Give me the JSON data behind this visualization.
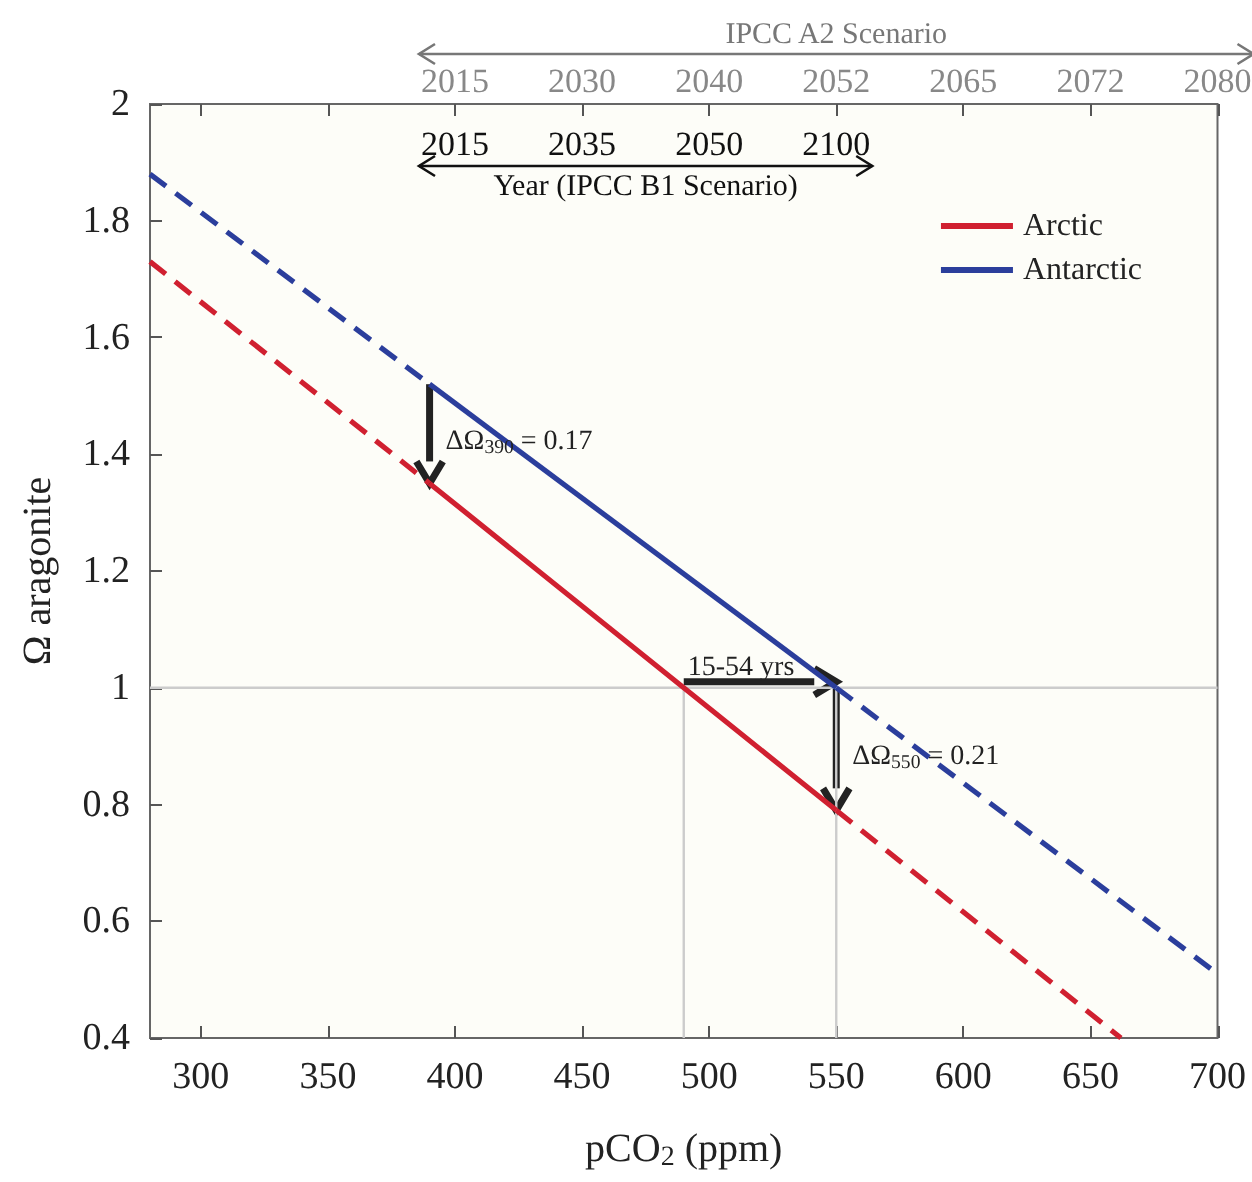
{
  "chart_data": {
    "type": "line",
    "xlabel": "pCO$_{2}$ (ppm)",
    "ylabel": "Ω aragonite",
    "x2label": "IPCC A2 Scenario",
    "xlim": [
      280,
      700
    ],
    "xticks": [
      300,
      350,
      400,
      450,
      500,
      550,
      600,
      650,
      700
    ],
    "ylim": [
      0.4,
      2
    ],
    "yticks": [
      0.4,
      0.6,
      0.8,
      1,
      1.2,
      1.4,
      1.6,
      1.8,
      2
    ],
    "marker": "none",
    "legend": "top right",
    "series": [
      {
        "name": "Arctic",
        "color": "#d02030",
        "line_style": "solid",
        "x": [
          390,
          490,
          550
        ],
        "values": [
          1.35,
          1.0,
          0.79
        ]
      },
      {
        "name": "Antarctic",
        "color": "#2b3e9c",
        "line_style": "solid",
        "x": [
          390,
          550
        ],
        "values": [
          1.52,
          1.0
        ]
      },
      {
        "color": "#d02030",
        "line_style": "dashed",
        "x": [
          280,
          390
        ],
        "values": [
          1.73,
          1.35
        ]
      },
      {
        "color": "#d02030",
        "line_style": "dashed",
        "x": [
          550,
          662
        ],
        "values": [
          0.79,
          0.4
        ]
      },
      {
        "color": "#2b3e9c",
        "line_style": "dashed",
        "x": [
          280,
          390
        ],
        "values": [
          1.88,
          1.52
        ]
      },
      {
        "color": "#2b3e9c",
        "line_style": "dashed",
        "x": [
          550,
          700
        ],
        "values": [
          1.0,
          0.51
        ]
      }
    ],
    "ref_lines": [
      {
        "axis": "y",
        "value": 1,
        "color": "#cccccc"
      },
      {
        "axis": "x",
        "value": 490,
        "color": "#cccccc"
      },
      {
        "axis": "x",
        "value": 550,
        "color": "#cccccc"
      }
    ],
    "annotations": [
      {
        "text": "ΔΩ$_{390}$ = 0.17",
        "x": 390,
        "y": 1.52
      },
      {
        "text": "15-54 yrs",
        "x": 490,
        "y": 1
      },
      {
        "text": "ΔΩ$_{550}$ = 0.21",
        "x": 550,
        "y": 1.0
      },
      "2015",
      "2030",
      "2040",
      "2052",
      "2065",
      "2072",
      "2080",
      "2015",
      "2035",
      "2050",
      "2100",
      "Year (IPCC B1 Scenario)"
    ]
  }
}
